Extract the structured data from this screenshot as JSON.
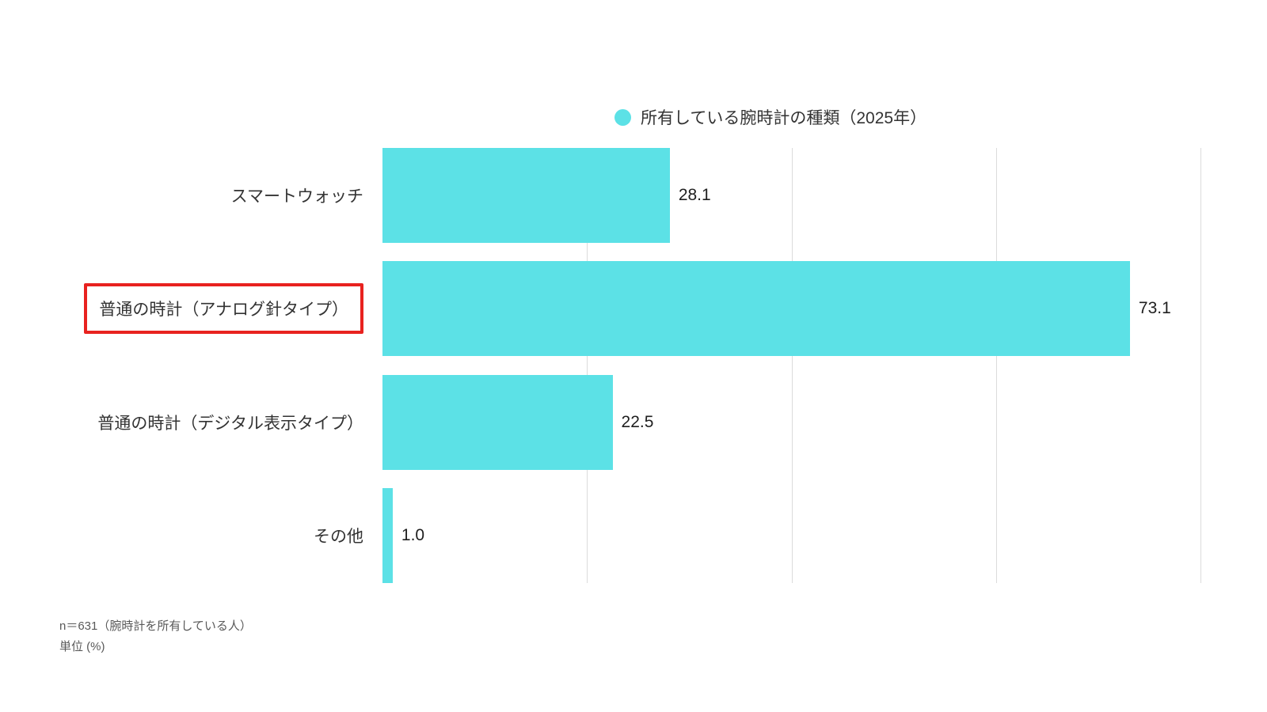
{
  "legend": {
    "label": "所有している腕時計の種類（2025年）",
    "marker_color": "#5CE1E6"
  },
  "chart_data": {
    "type": "bar",
    "orientation": "horizontal",
    "title": "所有している腕時計の種類（2025年）",
    "categories": [
      "スマートウォッチ",
      "普通の時計（アナログ針タイプ）",
      "普通の時計（デジタル表示タイプ）",
      "その他"
    ],
    "values": [
      28.1,
      73.1,
      22.5,
      1.0
    ],
    "value_labels": [
      "28.1",
      "73.1",
      "22.5",
      "1.0"
    ],
    "xlim": [
      0,
      80
    ],
    "gridlines": [
      20,
      40,
      60,
      80
    ],
    "grid": "vertical-lines",
    "legend_position": "top",
    "bar_color": "#5CE1E6",
    "highlighted_category_index": 1,
    "highlight_color": "#E8221F"
  },
  "footer": {
    "note1": "n＝631（腕時計を所有している人）",
    "note2": "単位 (%)"
  }
}
